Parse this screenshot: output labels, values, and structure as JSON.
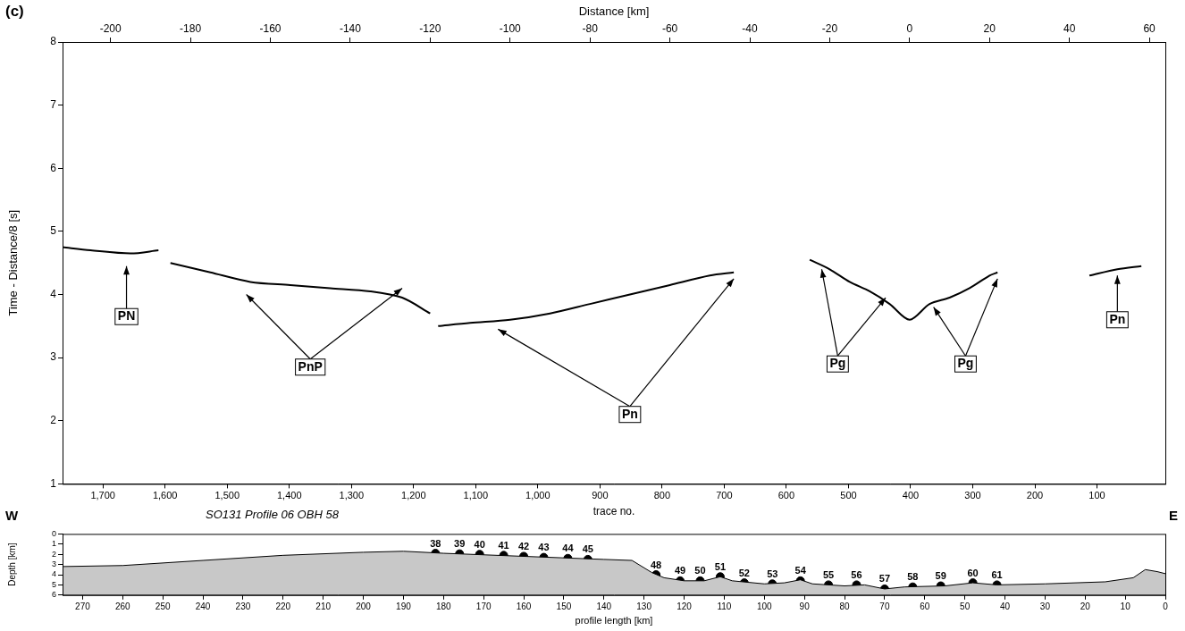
{
  "chart_data": [
    {
      "type": "line",
      "panel": "(c)",
      "subtitle": "SO131  Profile 06  OBH 58",
      "x_label": "Distance [km]",
      "xlim": [
        -212,
        64
      ],
      "xticks": [
        -200,
        -180,
        -160,
        -140,
        -120,
        -100,
        -80,
        -60,
        -40,
        -20,
        0,
        20,
        40,
        60
      ],
      "x2_label": "trace no.",
      "x2lim": [
        1765,
        -10
      ],
      "x2ticks": [
        1700,
        1600,
        1500,
        1400,
        1300,
        1200,
        1100,
        1000,
        900,
        800,
        700,
        600,
        500,
        400,
        300,
        200,
        100
      ],
      "y_label": "Time - Distance/8 [s]",
      "ylim": [
        1,
        8
      ],
      "yticks": [
        1,
        2,
        3,
        4,
        5,
        6,
        7,
        8
      ],
      "grid": false,
      "color": "#000000",
      "series": [
        {
          "name": "PN",
          "x": [
            -212,
            -205,
            -195,
            -188
          ],
          "values": [
            4.75,
            4.7,
            4.65,
            4.7
          ]
        },
        {
          "name": "PnP",
          "x": [
            -185,
            -175,
            -165,
            -155,
            -145,
            -135,
            -127,
            -120
          ],
          "values": [
            4.5,
            4.35,
            4.2,
            4.15,
            4.1,
            4.05,
            3.95,
            3.7
          ]
        },
        {
          "name": "Pn",
          "x": [
            -118,
            -110,
            -100,
            -90,
            -80,
            -70,
            -60,
            -50,
            -44
          ],
          "values": [
            3.5,
            3.55,
            3.6,
            3.7,
            3.85,
            4.0,
            4.15,
            4.3,
            4.35
          ]
        },
        {
          "name": "Pg",
          "x": [
            -25,
            -20,
            -15,
            -10,
            -5,
            0,
            5,
            10,
            15,
            20,
            22
          ],
          "values": [
            4.55,
            4.4,
            4.2,
            4.05,
            3.85,
            3.6,
            3.85,
            3.95,
            4.1,
            4.3,
            4.35
          ]
        },
        {
          "name": "Pn",
          "x": [
            45,
            52,
            58
          ],
          "values": [
            4.3,
            4.4,
            4.45
          ]
        }
      ],
      "annotations": [
        {
          "text": "PN",
          "x": -196,
          "y": 3.65,
          "arrows": [
            [
              -196,
              4.45
            ]
          ]
        },
        {
          "text": "PnP",
          "x": -150,
          "y": 2.85,
          "arrows": [
            [
              -166,
              4.0
            ],
            [
              -127,
              4.1
            ]
          ]
        },
        {
          "text": "Pn",
          "x": -70,
          "y": 2.1,
          "arrows": [
            [
              -103,
              3.45
            ],
            [
              -44,
              4.25
            ]
          ]
        },
        {
          "text": "Pg",
          "x": -18,
          "y": 2.9,
          "arrows": [
            [
              -22,
              4.4
            ],
            [
              -6,
              3.95
            ]
          ]
        },
        {
          "text": "Pg",
          "x": 14,
          "y": 2.9,
          "arrows": [
            [
              6,
              3.8
            ],
            [
              22,
              4.25
            ]
          ]
        },
        {
          "text": "Pn",
          "x": 52,
          "y": 3.6,
          "arrows": [
            [
              52,
              4.3
            ]
          ]
        }
      ]
    },
    {
      "type": "area",
      "end_labels": [
        "W",
        "E"
      ],
      "x_label": "profile length [km]",
      "xlim": [
        275,
        0
      ],
      "xticks": [
        270,
        260,
        250,
        240,
        230,
        220,
        210,
        200,
        190,
        180,
        170,
        160,
        150,
        140,
        130,
        120,
        110,
        100,
        90,
        80,
        70,
        60,
        50,
        40,
        30,
        20,
        10,
        0
      ],
      "y_label": "Depth [km]",
      "ylim": [
        6,
        0
      ],
      "yticks": [
        0,
        1,
        2,
        3,
        4,
        5,
        6
      ],
      "grid": false,
      "color": "#c8c8c8",
      "x": [
        275,
        260,
        240,
        220,
        200,
        190,
        180,
        160,
        140,
        133,
        128,
        125,
        120,
        115,
        111,
        108,
        100,
        95,
        91,
        88,
        80,
        75,
        70,
        65,
        55,
        48,
        42,
        30,
        15,
        8,
        5,
        2,
        0
      ],
      "values": [
        3.2,
        3.1,
        2.6,
        2.1,
        1.8,
        1.7,
        1.9,
        2.2,
        2.5,
        2.6,
        3.8,
        4.3,
        4.6,
        4.6,
        4.2,
        4.6,
        4.9,
        4.8,
        4.5,
        4.9,
        5.1,
        5.0,
        5.4,
        5.2,
        5.1,
        4.8,
        5.0,
        4.9,
        4.7,
        4.3,
        3.5,
        3.7,
        3.9
      ],
      "series": [
        {
          "type": "scatter",
          "marker": "circle",
          "color": "#000000",
          "data_labels": true,
          "labels": [
            38,
            39,
            40,
            41,
            42,
            43,
            44,
            45,
            48,
            49,
            50,
            51,
            52,
            53,
            54,
            55,
            56,
            57,
            58,
            59,
            60,
            61
          ],
          "x": [
            182,
            176,
            171,
            165,
            160,
            155,
            149,
            144,
            127,
            121,
            116,
            111,
            105,
            98,
            91,
            84,
            77,
            70,
            63,
            56,
            48,
            42
          ],
          "values": [
            1.9,
            1.95,
            2.0,
            2.1,
            2.2,
            2.3,
            2.4,
            2.5,
            4.0,
            4.6,
            4.6,
            4.2,
            4.8,
            4.9,
            4.6,
            5.0,
            5.0,
            5.4,
            5.2,
            5.1,
            4.8,
            5.0
          ]
        }
      ]
    }
  ]
}
